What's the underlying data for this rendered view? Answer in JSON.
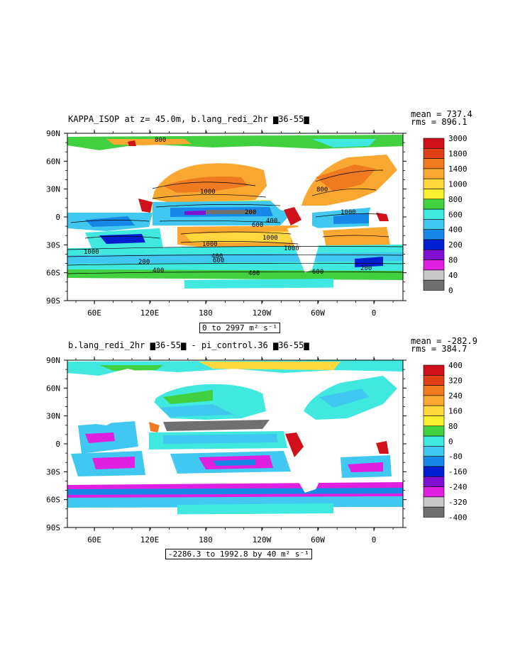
{
  "panels": [
    {
      "title": "KAPPA_ISOP at z=  45.0m, b.lang_redi_2hr ▆36-55▆",
      "stats": [
        "mean = 737.4",
        "rms = 896.1"
      ],
      "range_label": "0 to 2997 m² s⁻¹",
      "lat_ticks": [
        "90N",
        "60N",
        "30N",
        "0",
        "30S",
        "60S",
        "90S"
      ],
      "lon_ticks": [
        "60E",
        "120E",
        "180",
        "120W",
        "60W",
        "0"
      ],
      "colorbar": {
        "levels": [
          "3000",
          "1800",
          "1400",
          "1000",
          "800",
          "600",
          "400",
          "200",
          "80",
          "40",
          "0"
        ],
        "colors": [
          "#d0101a",
          "#e04018",
          "#f07a20",
          "#f8a830",
          "#ffd840",
          "#f8f030",
          "#40d040",
          "#40e8e0",
          "#40c8f0",
          "#1888e8",
          "#0020d0",
          "#8010d0",
          "#e020e0",
          "#c8c8c8",
          "#707070"
        ]
      },
      "contour_labels": [
        "800",
        "1000",
        "200",
        "400",
        "600",
        "1000",
        "1000",
        "1000",
        "400",
        "1000",
        "200",
        "400",
        "800",
        "1000",
        "600",
        "400",
        "600",
        "200",
        "1000",
        "600",
        "400",
        "600",
        "400",
        "200"
      ]
    },
    {
      "title": "b.lang_redi_2hr ▆36-55▆ - pi_control.36 ▆36-55▆",
      "stats": [
        "mean = -282.9",
        "rms = 384.7"
      ],
      "range_label": "-2286.3 to 1992.8 by 40 m² s⁻¹",
      "lat_ticks": [
        "90N",
        "60N",
        "30N",
        "0",
        "30S",
        "60S",
        "90S"
      ],
      "lon_ticks": [
        "60E",
        "120E",
        "180",
        "120W",
        "60W",
        "0"
      ],
      "colorbar": {
        "levels": [
          "400",
          "320",
          "240",
          "160",
          "80",
          "0",
          "-80",
          "-160",
          "-240",
          "-320",
          "-400"
        ],
        "colors": [
          "#d0101a",
          "#e04018",
          "#f07a20",
          "#f8a830",
          "#ffd840",
          "#f8f030",
          "#40d040",
          "#40e8e0",
          "#40c8f0",
          "#1888e8",
          "#0020d0",
          "#8010d0",
          "#e020e0",
          "#c8c8c8",
          "#707070"
        ]
      }
    }
  ]
}
